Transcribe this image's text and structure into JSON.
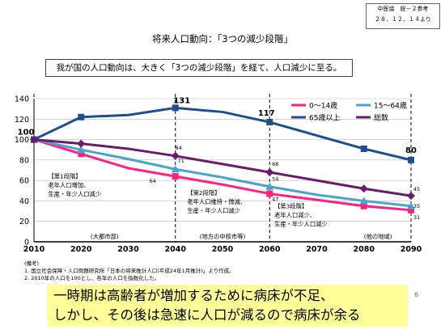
{
  "source_box": {
    "line1": "中医協　総－２参考",
    "line2": "２８．１２．１４より"
  },
  "page_title": "将来人口動向：「3つの減少段階」",
  "summary": "我が国の人口動向は、大きく「3つの減少段階」を経て、人口減少に至る。",
  "chart_data": {
    "type": "line",
    "x": [
      2010,
      2020,
      2030,
      2040,
      2050,
      2060,
      2070,
      2080,
      2090
    ],
    "xlim": [
      2010,
      2090
    ],
    "ylim": [
      0,
      140
    ],
    "yticks": [
      0,
      20,
      40,
      60,
      80,
      100,
      120,
      140
    ],
    "grid": true,
    "legend_position": "top-right",
    "series": [
      {
        "name": "0～14歳",
        "color": "#ff2080",
        "marker": "square",
        "values": [
          100,
          86,
          72,
          64,
          56,
          47,
          41,
          35,
          31
        ]
      },
      {
        "name": "15～64歳",
        "color": "#4aa3c8",
        "marker": "triangle",
        "values": [
          100,
          90,
          81,
          71,
          63,
          54,
          46,
          40,
          35
        ]
      },
      {
        "name": "65歳以上",
        "color": "#1f4e8c",
        "marker": "square",
        "values": [
          100,
          122,
          124,
          131,
          127,
          117,
          104,
          91,
          80
        ]
      },
      {
        "name": "総数",
        "color": "#6a1b6a",
        "marker": "diamond",
        "values": [
          100,
          96,
          91,
          84,
          76,
          68,
          60,
          52,
          45
        ]
      }
    ],
    "value_labels": [
      {
        "text": "100",
        "series": 2,
        "index": 0
      },
      {
        "text": "131",
        "series": 2,
        "index": 3
      },
      {
        "text": "117",
        "series": 2,
        "index": 5
      },
      {
        "text": "80",
        "series": 2,
        "index": 8
      },
      {
        "text": "84",
        "series": 3,
        "index": 3
      },
      {
        "text": "68",
        "series": 3,
        "index": 5
      },
      {
        "text": "45",
        "series": 3,
        "index": 8
      },
      {
        "text": "71",
        "series": 1,
        "index": 3
      },
      {
        "text": "54",
        "series": 1,
        "index": 5
      },
      {
        "text": "35",
        "series": 1,
        "index": 8
      },
      {
        "text": "64",
        "series": 0,
        "index": 3
      },
      {
        "text": "47",
        "series": 0,
        "index": 5
      },
      {
        "text": "31",
        "series": 0,
        "index": 8
      }
    ],
    "stages": [
      {
        "x_start": 2010,
        "x_end": 2040,
        "lines": [
          "【第1段階】",
          "老年人口増加、",
          "生産・年少人口減少"
        ],
        "region": "(大都市部)"
      },
      {
        "x_start": 2040,
        "x_end": 2060,
        "lines": [
          "【第2段階】",
          "老年人口維持・微減、",
          "生産・年少人口減少"
        ],
        "region": "(地方の中核市等)"
      },
      {
        "x_start": 2060,
        "x_end": 2090,
        "lines": [
          "【第3段階】",
          "老年人口減少、",
          "生産・年少人口減少"
        ],
        "region": "(他の地域)"
      }
    ]
  },
  "notes": [
    "(備考)",
    "1. 国立社会保障・人口問題研究所「日本の将来推計人口(平成24年1月推計)」より作成。",
    "2. 2010年の人口を100とし、各年の人口を指数化した。"
  ],
  "callout": {
    "line1": "一時期は高齢者が増加するために病床が不足、",
    "line2": "しかし、その後は急速に人口が減るので病床が余る"
  },
  "page_number": "6"
}
